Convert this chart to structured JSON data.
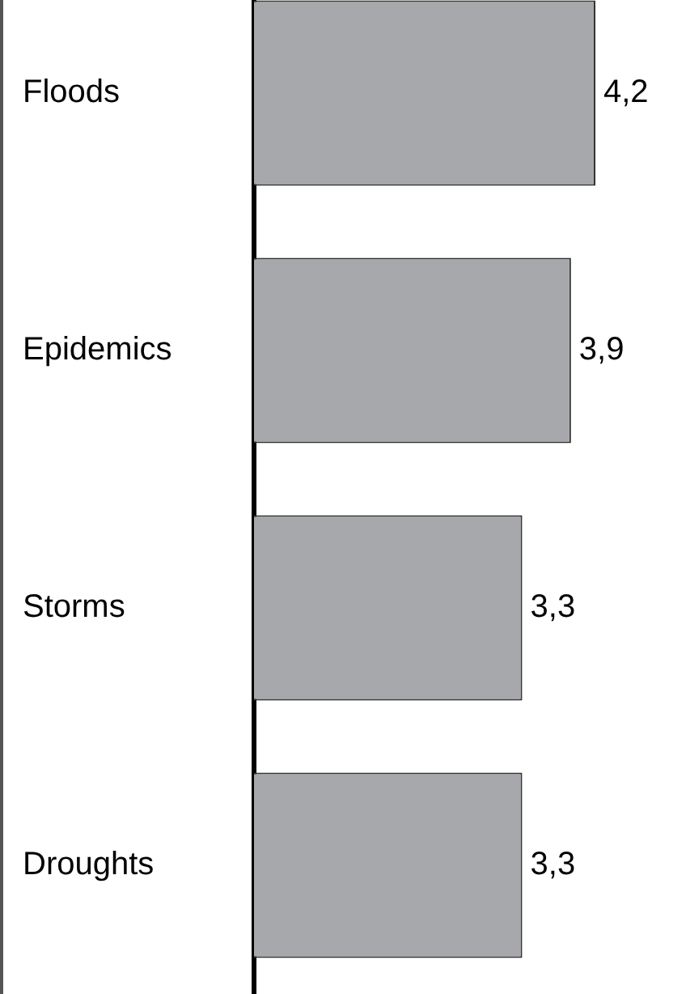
{
  "chart_data": {
    "type": "bar",
    "orientation": "horizontal",
    "categories": [
      "Floods",
      "Epidemics",
      "Storms",
      "Droughts"
    ],
    "values": [
      4.2,
      3.9,
      3.3,
      3.3
    ],
    "color": "#a7a8ab",
    "value_labels": [
      "4,2",
      "3,9",
      "3,3",
      "3,3"
    ],
    "tick_labels": "y",
    "legend": false
  }
}
